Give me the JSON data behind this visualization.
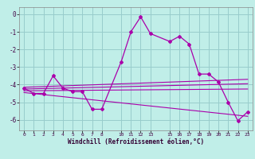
{
  "xlabel": "Windchill (Refroidissement éolien,°C)",
  "bg_color": "#c0eee8",
  "grid_color": "#98cccc",
  "line_color": "#aa00aa",
  "xlim": [
    -0.5,
    23.5
  ],
  "ylim": [
    -6.6,
    0.4
  ],
  "yticks": [
    0,
    -1,
    -2,
    -3,
    -4,
    -5,
    -6
  ],
  "xticks": [
    0,
    1,
    2,
    3,
    4,
    5,
    6,
    7,
    8,
    10,
    11,
    12,
    13,
    15,
    16,
    17,
    18,
    19,
    20,
    21,
    22,
    23
  ],
  "data_x": [
    0,
    1,
    2,
    3,
    4,
    5,
    6,
    7,
    8,
    10,
    11,
    12,
    13,
    15,
    16,
    17,
    18,
    19,
    20,
    21,
    22,
    23
  ],
  "data_y": [
    -4.2,
    -4.5,
    -4.5,
    -3.5,
    -4.2,
    -4.4,
    -4.4,
    -5.4,
    -5.4,
    -2.7,
    -1.0,
    -0.15,
    -1.1,
    -1.55,
    -1.25,
    -1.7,
    -3.4,
    -3.4,
    -3.85,
    -5.0,
    -6.05,
    -5.55
  ],
  "reg_lines": [
    {
      "x": [
        0,
        23
      ],
      "y": [
        -4.15,
        -3.7
      ]
    },
    {
      "x": [
        0,
        23
      ],
      "y": [
        -4.25,
        -3.95
      ]
    },
    {
      "x": [
        0,
        23
      ],
      "y": [
        -4.35,
        -4.25
      ]
    },
    {
      "x": [
        0,
        23
      ],
      "y": [
        -4.45,
        -5.8
      ]
    }
  ]
}
